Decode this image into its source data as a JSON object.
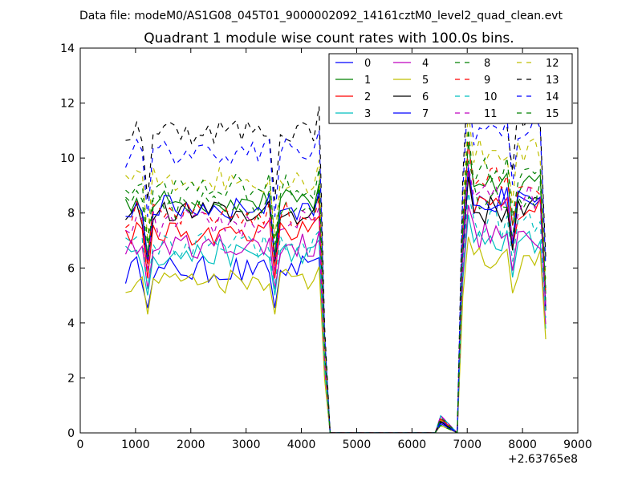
{
  "chart_data": {
    "type": "line",
    "suptitle": "Data file: modeM0/AS1G08_045T01_9000002092_14161cztM0_level2_quad_clean.evt",
    "title": "Quadrant 1 module wise count rates with 100.0s bins.",
    "xlabel": "",
    "ylabel": "",
    "xlim": [
      0,
      9000
    ],
    "ylim": [
      0,
      14
    ],
    "x_offset_label": "+2.63765e8",
    "xticks": [
      0,
      1000,
      2000,
      3000,
      4000,
      5000,
      6000,
      7000,
      8000,
      9000
    ],
    "xtick_labels": [
      "0",
      "1000",
      "2000",
      "3000",
      "4000",
      "5000",
      "6000",
      "7000",
      "8000",
      "9000"
    ],
    "yticks": [
      0,
      2,
      4,
      6,
      8,
      10,
      12,
      14
    ],
    "ytick_labels": [
      "0",
      "2",
      "4",
      "6",
      "8",
      "10",
      "12",
      "14"
    ],
    "grid": false,
    "legend_position": "top-right",
    "legend_columns": 4,
    "segments": [
      {
        "x_start": 820,
        "x_step": 100,
        "count": 36
      },
      {
        "x_start": 4420,
        "x_step": 100,
        "count": 2,
        "shape": "drop"
      },
      {
        "x_start": 4620,
        "x_step": 100,
        "count": 20,
        "shape": "zero_with_blip"
      },
      {
        "x_start": 6920,
        "x_step": 100,
        "count": 16
      }
    ],
    "series": [
      {
        "name": "0",
        "color": "#0000ff",
        "dash": "solid",
        "level": 5.9,
        "after": 8.4
      },
      {
        "name": "1",
        "color": "#008000",
        "dash": "solid",
        "level": 8.4,
        "after": 9.2
      },
      {
        "name": "2",
        "color": "#ff0000",
        "dash": "solid",
        "level": 7.3,
        "after": 8.3
      },
      {
        "name": "3",
        "color": "#00bfbf",
        "dash": "solid",
        "level": 6.5,
        "after": 6.9
      },
      {
        "name": "4",
        "color": "#bf00bf",
        "dash": "solid",
        "level": 6.8,
        "after": 7.2
      },
      {
        "name": "5",
        "color": "#bfbf00",
        "dash": "solid",
        "level": 5.6,
        "after": 6.2
      },
      {
        "name": "6",
        "color": "#000000",
        "dash": "solid",
        "level": 8.0,
        "after": 8.1
      },
      {
        "name": "7",
        "color": "#0000ff",
        "dash": "solid",
        "level": 8.2,
        "after": 8.4
      },
      {
        "name": "8",
        "color": "#008000",
        "dash": "dashed",
        "level": 8.3,
        "after": 8.7
      },
      {
        "name": "9",
        "color": "#ff0000",
        "dash": "dashed",
        "level": 7.9,
        "after": 9.2
      },
      {
        "name": "10",
        "color": "#00bfbf",
        "dash": "dashed",
        "level": 6.8,
        "after": 7.6
      },
      {
        "name": "11",
        "color": "#bf00bf",
        "dash": "dashed",
        "level": 7.6,
        "after": 8.5
      },
      {
        "name": "12",
        "color": "#bfbf00",
        "dash": "dashed",
        "level": 9.2,
        "after": 10.2
      },
      {
        "name": "13",
        "color": "#000000",
        "dash": "dashed",
        "level": 11.0,
        "after": 11.6
      },
      {
        "name": "14",
        "color": "#0000ff",
        "dash": "dashed",
        "level": 10.2,
        "after": 11.0
      },
      {
        "name": "15",
        "color": "#008000",
        "dash": "dashed",
        "level": 8.9,
        "after": 9.6
      }
    ]
  }
}
